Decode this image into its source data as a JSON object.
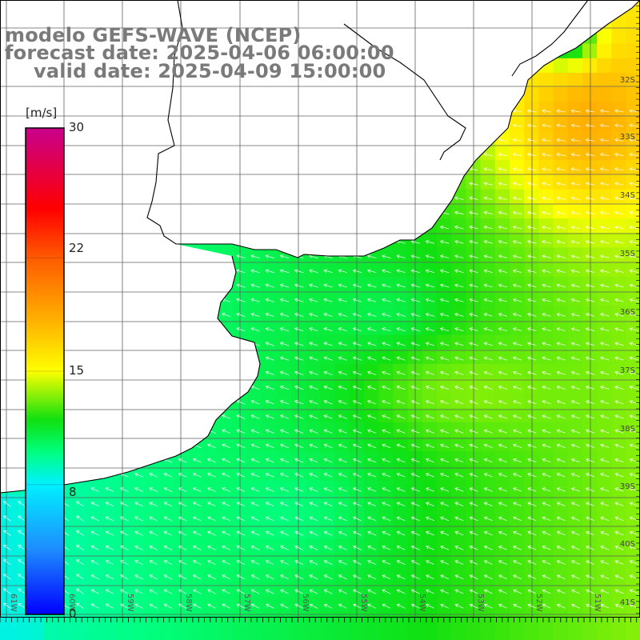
{
  "title": {
    "line1": "modelo GEFS-WAVE (NCEP)",
    "line2": "forecast date: 2025-04-06 06:00:00",
    "line3": "valid date: 2025-04-09 15:00:00"
  },
  "colorbar": {
    "unit": "[m/s]",
    "tick_values": [
      "30",
      "22",
      "15",
      "8",
      "0"
    ],
    "vmin": 0,
    "vmax": 30,
    "stops": [
      {
        "v": 0,
        "color": "#0000ff"
      },
      {
        "v": 4,
        "color": "#1e8cff"
      },
      {
        "v": 8,
        "color": "#00f0ff"
      },
      {
        "v": 10,
        "color": "#00ff80"
      },
      {
        "v": 12,
        "color": "#10e010"
      },
      {
        "v": 15,
        "color": "#ffff00"
      },
      {
        "v": 18,
        "color": "#ffb400"
      },
      {
        "v": 22,
        "color": "#ff5a00"
      },
      {
        "v": 25,
        "color": "#ff0000"
      },
      {
        "v": 30,
        "color": "#c8008c"
      }
    ]
  },
  "map": {
    "latitude_labels": [
      "32S",
      "33S",
      "34S",
      "35S",
      "36S",
      "37S",
      "38S",
      "39S",
      "40S",
      "41S"
    ],
    "longitude_labels": [
      "61W",
      "60W",
      "59W",
      "58W",
      "57W",
      "56W",
      "55W",
      "54W",
      "53W",
      "52W",
      "51W"
    ],
    "grid": true,
    "land_color": "#ffffff",
    "coastline_color": "#000000",
    "arrow_color": "#ffffff",
    "wind_direction": "from east-northeast, toward west-southwest"
  }
}
